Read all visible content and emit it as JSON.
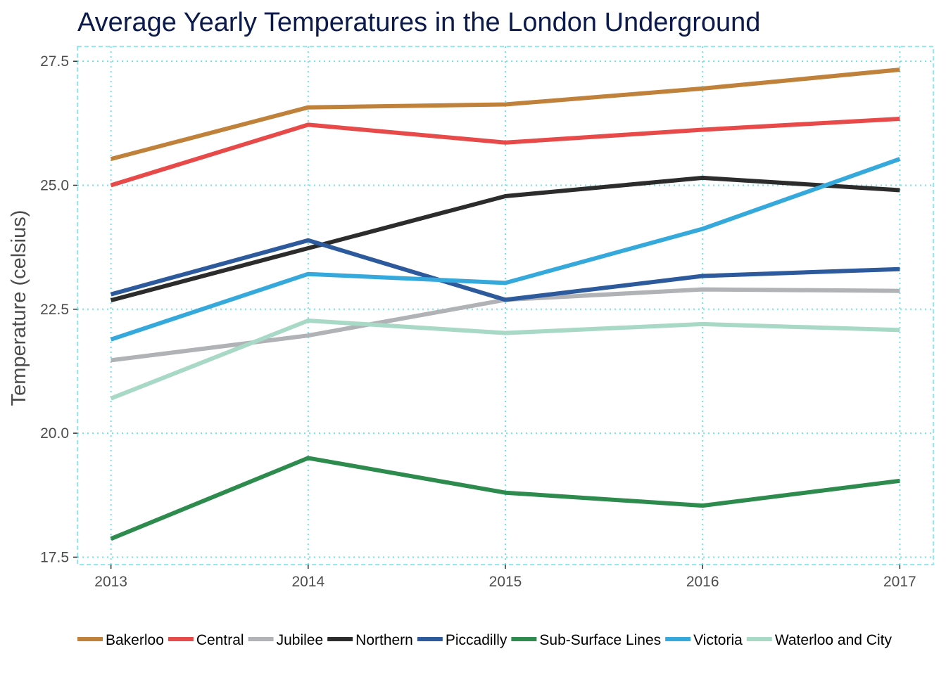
{
  "chart_data": {
    "type": "line",
    "title": "Average Yearly Temperatures in the London Underground",
    "xlabel": "",
    "ylabel": "Temperature (celsius)",
    "x": [
      2013,
      2014,
      2015,
      2016,
      2017
    ],
    "x_tick_labels": [
      "2013",
      "2014",
      "2015",
      "2016",
      "2017"
    ],
    "y_ticks": [
      17.5,
      20.0,
      22.5,
      25.0,
      27.5
    ],
    "y_tick_labels": [
      "17.5",
      "20.0",
      "22.5",
      "25.0",
      "27.5"
    ],
    "ylim": [
      17.35,
      27.8
    ],
    "xlim": [
      2012.83,
      2017.17
    ],
    "grid": true,
    "legend_position": "bottom",
    "series": [
      {
        "name": "Bakerloo",
        "color": "#c0813a",
        "values": [
          25.53,
          26.57,
          26.63,
          26.95,
          27.33
        ]
      },
      {
        "name": "Central",
        "color": "#e84a4a",
        "values": [
          25.0,
          26.22,
          25.86,
          26.12,
          26.34
        ]
      },
      {
        "name": "Jubilee",
        "color": "#b0b2b6",
        "values": [
          21.47,
          21.97,
          22.69,
          22.9,
          22.87
        ]
      },
      {
        "name": "Northern",
        "color": "#2c2c2c",
        "values": [
          22.68,
          23.73,
          24.78,
          25.15,
          24.9
        ]
      },
      {
        "name": "Piccadilly",
        "color": "#2d5a9c",
        "values": [
          22.8,
          23.89,
          22.69,
          23.17,
          23.31
        ]
      },
      {
        "name": "Sub-Surface Lines",
        "color": "#2e8b4e",
        "values": [
          17.87,
          19.5,
          18.8,
          18.54,
          19.04
        ]
      },
      {
        "name": "Victoria",
        "color": "#35a9dc",
        "values": [
          21.89,
          23.21,
          23.03,
          24.12,
          25.53
        ]
      },
      {
        "name": "Waterloo and City",
        "color": "#a8d8c6",
        "values": [
          20.7,
          22.27,
          22.02,
          22.2,
          22.08
        ]
      }
    ]
  }
}
